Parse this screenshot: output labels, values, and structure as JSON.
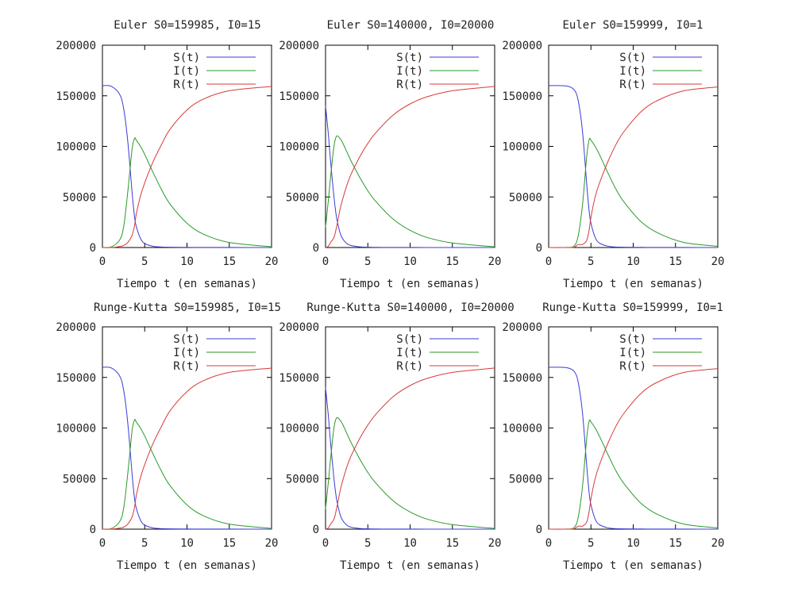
{
  "chart_data": [
    {
      "type": "line",
      "title": "Euler S0=159985, I0=15",
      "xlabel": "Tiempo t (en semanas)",
      "ylabel": "",
      "xlim": [
        0,
        20
      ],
      "ylim": [
        0,
        200000
      ],
      "x_ticks": [
        "0",
        "5",
        "10",
        "15",
        "20"
      ],
      "y_ticks": [
        "0",
        "50000",
        "100000",
        "150000",
        "200000"
      ],
      "legend_position": "top-right",
      "x": [
        0,
        1,
        2,
        2.5,
        3,
        3.5,
        3.8,
        4,
        4.5,
        5,
        6,
        7,
        8,
        10,
        12,
        15,
        20
      ],
      "series": [
        {
          "name": "S(t)",
          "color": "#3b3bd6",
          "values": [
            159985,
            159500,
            152000,
            138000,
            105000,
            55000,
            30000,
            21000,
            9000,
            4000,
            1200,
            500,
            300,
            150,
            100,
            50,
            20
          ]
        },
        {
          "name": "I(t)",
          "color": "#2a9a2a",
          "values": [
            15,
            500,
            7000,
            20000,
            55000,
            97000,
            108000,
            106000,
            100000,
            92000,
            74000,
            57000,
            43000,
            24000,
            13000,
            5000,
            800
          ]
        },
        {
          "name": "R(t)",
          "color": "#d83a3a",
          "values": [
            0,
            0,
            1000,
            2000,
            5000,
            12000,
            22000,
            33000,
            51000,
            64000,
            85000,
            102000,
            117000,
            136000,
            147000,
            155000,
            159180
          ]
        }
      ]
    },
    {
      "type": "line",
      "title": "Euler S0=140000, I0=20000",
      "xlabel": "Tiempo t (en semanas)",
      "ylabel": "",
      "xlim": [
        0,
        20
      ],
      "ylim": [
        0,
        200000
      ],
      "x_ticks": [
        "0",
        "5",
        "10",
        "15",
        "20"
      ],
      "y_ticks": [
        "0",
        "50000",
        "100000",
        "150000",
        "200000"
      ],
      "legend_position": "top-right",
      "x": [
        0,
        0.3,
        0.6,
        1,
        1.3,
        1.7,
        2,
        2.5,
        3,
        4,
        5,
        6,
        8,
        10,
        12,
        15,
        20
      ],
      "series": [
        {
          "name": "S(t)",
          "color": "#3b3bd6",
          "values": [
            140000,
            115000,
            85000,
            50000,
            30000,
            15000,
            9000,
            4000,
            2000,
            700,
            300,
            150,
            80,
            50,
            30,
            20,
            10
          ]
        },
        {
          "name": "I(t)",
          "color": "#2a9a2a",
          "values": [
            20000,
            44000,
            70000,
            100000,
            110000,
            108000,
            104000,
            95000,
            86000,
            70000,
            56000,
            45000,
            28000,
            17000,
            10000,
            4500,
            700
          ]
        },
        {
          "name": "R(t)",
          "color": "#d83a3a",
          "values": [
            0,
            1000,
            5000,
            10000,
            20000,
            37000,
            47000,
            61000,
            72000,
            89000,
            103000,
            114000,
            131000,
            142000,
            149000,
            155000,
            159290
          ]
        }
      ]
    },
    {
      "type": "line",
      "title": "Euler S0=159999, I0=1",
      "xlabel": "Tiempo t (en semanas)",
      "ylabel": "",
      "xlim": [
        0,
        20
      ],
      "ylim": [
        0,
        200000
      ],
      "x_ticks": [
        "0",
        "5",
        "10",
        "15",
        "20"
      ],
      "y_ticks": [
        "0",
        "50000",
        "100000",
        "150000",
        "200000"
      ],
      "legend_position": "top-right",
      "x": [
        0,
        2,
        3,
        3.5,
        4,
        4.5,
        4.8,
        5,
        5.5,
        6,
        7,
        8,
        9,
        11,
        13,
        16,
        20
      ],
      "series": [
        {
          "name": "S(t)",
          "color": "#3b3bd6",
          "values": [
            159999,
            159800,
            156000,
            145000,
            115000,
            63000,
            35000,
            24000,
            10000,
            4500,
            1300,
            500,
            300,
            150,
            100,
            50,
            30
          ]
        },
        {
          "name": "I(t)",
          "color": "#2a9a2a",
          "values": [
            1,
            50,
            1500,
            12000,
            42000,
            90000,
            107000,
            106000,
            100000,
            92000,
            74000,
            57000,
            44000,
            25000,
            14000,
            5000,
            1200
          ]
        },
        {
          "name": "R(t)",
          "color": "#d83a3a",
          "values": [
            0,
            0,
            300,
            3000,
            3000,
            7000,
            18000,
            30000,
            50000,
            63500,
            84700,
            102500,
            115700,
            134850,
            145900,
            154950,
            158770
          ]
        }
      ]
    },
    {
      "type": "line",
      "title": "Runge-Kutta S0=159985, I0=15",
      "xlabel": "Tiempo t (en semanas)",
      "ylabel": "",
      "xlim": [
        0,
        20
      ],
      "ylim": [
        0,
        200000
      ],
      "x_ticks": [
        "0",
        "5",
        "10",
        "15",
        "20"
      ],
      "y_ticks": [
        "0",
        "50000",
        "100000",
        "150000",
        "200000"
      ],
      "legend_position": "top-right",
      "x": [
        0,
        1,
        2,
        2.5,
        3,
        3.5,
        3.8,
        4,
        4.5,
        5,
        6,
        7,
        8,
        10,
        12,
        15,
        20
      ],
      "series": [
        {
          "name": "S(t)",
          "color": "#3b3bd6",
          "values": [
            159985,
            159500,
            152000,
            138000,
            105000,
            55000,
            30000,
            21000,
            9000,
            4000,
            1200,
            500,
            300,
            150,
            100,
            50,
            20
          ]
        },
        {
          "name": "I(t)",
          "color": "#2a9a2a",
          "values": [
            15,
            500,
            7000,
            20000,
            55000,
            97000,
            108000,
            106000,
            100000,
            92000,
            74000,
            57000,
            43000,
            24000,
            13000,
            5000,
            800
          ]
        },
        {
          "name": "R(t)",
          "color": "#d83a3a",
          "values": [
            0,
            0,
            1000,
            2000,
            5000,
            12000,
            22000,
            33000,
            51000,
            64000,
            85000,
            102000,
            117000,
            136000,
            147000,
            155000,
            159180
          ]
        }
      ]
    },
    {
      "type": "line",
      "title": "Runge-Kutta S0=140000, I0=20000",
      "xlabel": "Tiempo t (en semanas)",
      "ylabel": "",
      "xlim": [
        0,
        20
      ],
      "ylim": [
        0,
        200000
      ],
      "x_ticks": [
        "0",
        "5",
        "10",
        "15",
        "20"
      ],
      "y_ticks": [
        "0",
        "50000",
        "100000",
        "150000",
        "200000"
      ],
      "legend_position": "top-right",
      "x": [
        0,
        0.3,
        0.6,
        1,
        1.3,
        1.7,
        2,
        2.5,
        3,
        4,
        5,
        6,
        8,
        10,
        12,
        15,
        20
      ],
      "series": [
        {
          "name": "S(t)",
          "color": "#3b3bd6",
          "values": [
            140000,
            115000,
            85000,
            50000,
            30000,
            15000,
            9000,
            4000,
            2000,
            700,
            300,
            150,
            80,
            50,
            30,
            20,
            10
          ]
        },
        {
          "name": "I(t)",
          "color": "#2a9a2a",
          "values": [
            20000,
            44000,
            70000,
            100000,
            110000,
            108000,
            104000,
            95000,
            86000,
            70000,
            56000,
            45000,
            28000,
            17000,
            10000,
            4500,
            700
          ]
        },
        {
          "name": "R(t)",
          "color": "#d83a3a",
          "values": [
            0,
            1000,
            5000,
            10000,
            20000,
            37000,
            47000,
            61000,
            72000,
            89000,
            103000,
            114000,
            131000,
            142000,
            149000,
            155000,
            159290
          ]
        }
      ]
    },
    {
      "type": "line",
      "title": "Runge-Kutta S0=159999, I0=1",
      "xlabel": "Tiempo t (en semanas)",
      "ylabel": "",
      "xlim": [
        0,
        20
      ],
      "ylim": [
        0,
        200000
      ],
      "x_ticks": [
        "0",
        "5",
        "10",
        "15",
        "20"
      ],
      "y_ticks": [
        "0",
        "50000",
        "100000",
        "150000",
        "200000"
      ],
      "legend_position": "top-right",
      "x": [
        0,
        2,
        3,
        3.5,
        4,
        4.5,
        4.8,
        5,
        5.5,
        6,
        7,
        8,
        9,
        11,
        13,
        16,
        20
      ],
      "series": [
        {
          "name": "S(t)",
          "color": "#3b3bd6",
          "values": [
            159999,
            159800,
            156000,
            145000,
            115000,
            63000,
            35000,
            24000,
            10000,
            4500,
            1300,
            500,
            300,
            150,
            100,
            50,
            30
          ]
        },
        {
          "name": "I(t)",
          "color": "#2a9a2a",
          "values": [
            1,
            50,
            1500,
            12000,
            42000,
            90000,
            107000,
            106000,
            100000,
            92000,
            74000,
            57000,
            44000,
            25000,
            14000,
            5000,
            1200
          ]
        },
        {
          "name": "R(t)",
          "color": "#d83a3a",
          "values": [
            0,
            0,
            300,
            3000,
            3000,
            7000,
            18000,
            30000,
            50000,
            63500,
            84700,
            102500,
            115700,
            134850,
            145900,
            154950,
            158770
          ]
        }
      ]
    }
  ]
}
